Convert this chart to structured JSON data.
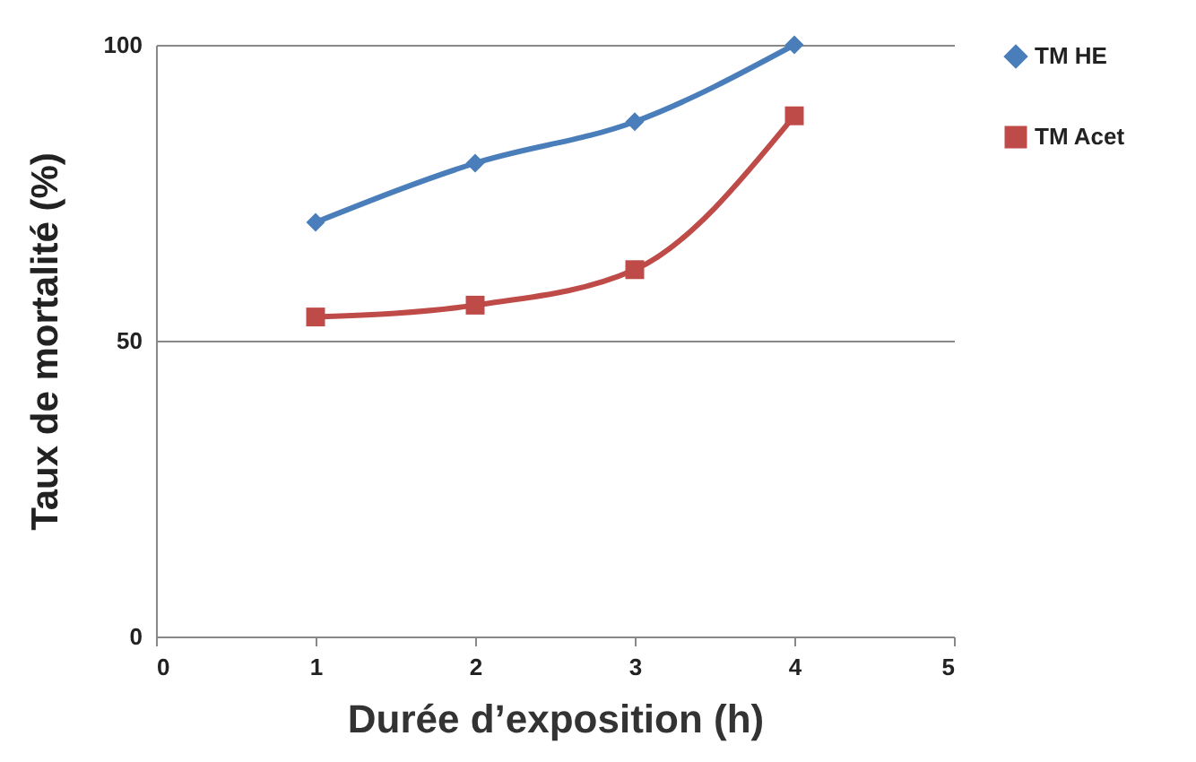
{
  "chart_data": {
    "type": "line",
    "xlabel": "Durée d’exposition (h)",
    "ylabel": "Taux de mortalité (%)",
    "x": [
      1,
      2,
      3,
      4
    ],
    "series": [
      {
        "name": "TM HE",
        "color": "#4a7ebb",
        "marker": "diamond",
        "values": [
          70,
          80,
          87,
          100
        ]
      },
      {
        "name": "TM Acet",
        "color": "#be4b48",
        "marker": "square",
        "values": [
          54,
          56,
          62,
          88
        ]
      }
    ],
    "xlim": [
      0,
      5
    ],
    "xticks": [
      0,
      1,
      2,
      3,
      4,
      5
    ],
    "ylim": [
      0,
      100
    ],
    "yticks": [
      0,
      50,
      100
    ],
    "grid": "y",
    "legend": "right",
    "line_style": "solid"
  }
}
